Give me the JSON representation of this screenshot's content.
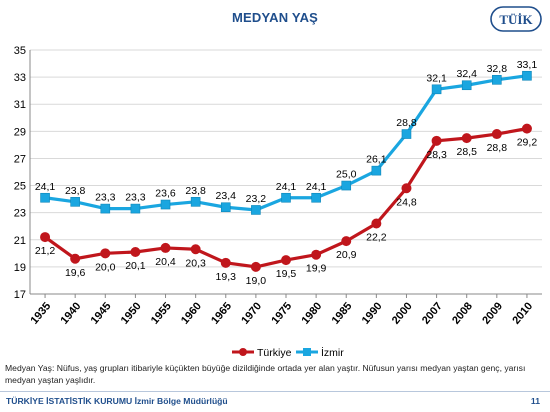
{
  "header": {
    "title": "MEDYAN YAŞ",
    "logo_text": "TÜİK"
  },
  "chart_data": {
    "type": "line",
    "title": "MEDYAN YAŞ",
    "categories": [
      "1935",
      "1940",
      "1945",
      "1950",
      "1955",
      "1960",
      "1965",
      "1970",
      "1975",
      "1980",
      "1985",
      "1990",
      "2000",
      "2007",
      "2008",
      "2009",
      "2010"
    ],
    "series": [
      {
        "name": "Türkiye",
        "color": "#c0161c",
        "marker": "circle",
        "values": [
          21.2,
          19.6,
          20.0,
          20.1,
          20.4,
          20.3,
          19.3,
          19.0,
          19.5,
          19.9,
          20.9,
          22.2,
          24.8,
          28.3,
          28.5,
          28.8,
          29.2
        ],
        "labels": [
          "21,2",
          "19,6",
          "20,0",
          "20,1",
          "20,4",
          "20,3",
          "19,3",
          "19,0",
          "19,5",
          "19,9",
          "20,9",
          "22,2",
          "24,8",
          "28,3",
          "28,5",
          "28,8",
          "29,2"
        ]
      },
      {
        "name": "İzmir",
        "color": "#1aa6e0",
        "marker": "square",
        "values": [
          24.1,
          23.8,
          23.3,
          23.3,
          23.6,
          23.8,
          23.4,
          23.2,
          24.1,
          24.1,
          25.0,
          26.1,
          28.8,
          32.1,
          32.4,
          32.8,
          33.1
        ],
        "labels": [
          "24,1",
          "23,8",
          "23,3",
          "23,3",
          "23,6",
          "23,8",
          "23,4",
          "23,2",
          "24,1",
          "24,1",
          "25,0",
          "26,1",
          "28,8",
          "32,1",
          "32,4",
          "32,8",
          "33,1"
        ]
      }
    ],
    "ylim": [
      17,
      35
    ],
    "yticks": [
      17,
      19,
      21,
      23,
      25,
      27,
      29,
      31,
      33,
      35
    ],
    "grid": true,
    "legend_position": "bottom"
  },
  "description": "Medyan Yaş: Nüfus, yaş grupları itibariyle küçükten büyüğe dizildiğinde ortada yer alan yaştır. Nüfusun yarısı medyan yaştan genç, yarısı medyan yaştan yaşlıdır.",
  "footer": {
    "org": "TÜRKİYE İSTATİSTİK KURUMU",
    "office": "İzmir Bölge Müdürlüğü",
    "page_number": "11"
  }
}
